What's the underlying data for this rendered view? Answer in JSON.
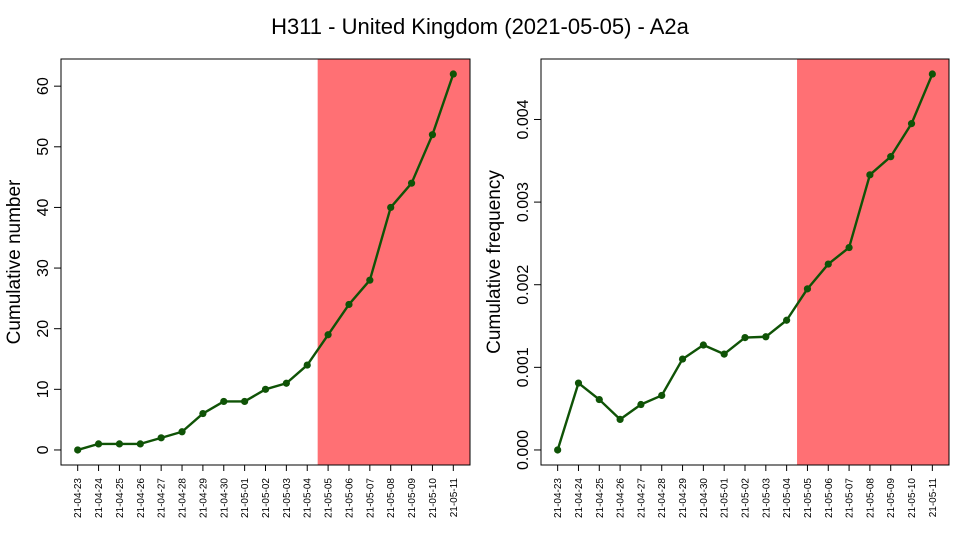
{
  "figure": {
    "title": "H311 - United Kingdom (2021-05-05) - A2a"
  },
  "chart_data": [
    {
      "type": "line",
      "title": "",
      "xlabel": "",
      "ylabel": "Cumulative number",
      "categories": [
        "21-04-23",
        "21-04-24",
        "21-04-25",
        "21-04-26",
        "21-04-27",
        "21-04-28",
        "21-04-29",
        "21-04-30",
        "21-05-01",
        "21-05-02",
        "21-05-03",
        "21-05-04",
        "21-05-05",
        "21-05-06",
        "21-05-07",
        "21-05-08",
        "21-05-09",
        "21-05-10",
        "21-05-11"
      ],
      "values": [
        0,
        1,
        1,
        1,
        2,
        3,
        6,
        8,
        8,
        10,
        11,
        14,
        19,
        24,
        28,
        40,
        44,
        52,
        62
      ],
      "yticks": [
        0,
        10,
        20,
        30,
        40,
        50,
        60
      ],
      "ytick_labels": [
        "0",
        "10",
        "20",
        "30",
        "40",
        "50",
        "60"
      ],
      "ylim": [
        -2.48,
        64.48
      ],
      "highlight_region": {
        "from": "21-05-05",
        "to": "21-05-11",
        "color": "#ff7074"
      },
      "line_color": "#0f5306",
      "grid": false
    },
    {
      "type": "line",
      "title": "",
      "xlabel": "",
      "ylabel": "Cumulative frequency",
      "categories": [
        "21-04-23",
        "21-04-24",
        "21-04-25",
        "21-04-26",
        "21-04-27",
        "21-04-28",
        "21-04-29",
        "21-04-30",
        "21-05-01",
        "21-05-02",
        "21-05-03",
        "21-05-04",
        "21-05-05",
        "21-05-06",
        "21-05-07",
        "21-05-08",
        "21-05-09",
        "21-05-10",
        "21-05-11"
      ],
      "values": [
        0.0,
        0.00081,
        0.00061,
        0.00037,
        0.00055,
        0.00066,
        0.0011,
        0.00127,
        0.00116,
        0.00136,
        0.00137,
        0.00157,
        0.00195,
        0.00225,
        0.00245,
        0.00333,
        0.00355,
        0.00395,
        0.00455
      ],
      "yticks": [
        0.0,
        0.001,
        0.002,
        0.003,
        0.004
      ],
      "ytick_labels": [
        "0.000",
        "0.001",
        "0.002",
        "0.003",
        "0.004"
      ],
      "ylim": [
        -0.000182,
        0.004732
      ],
      "highlight_region": {
        "from": "21-05-05",
        "to": "21-05-11",
        "color": "#ff7074"
      },
      "line_color": "#0f5306",
      "grid": false
    }
  ]
}
